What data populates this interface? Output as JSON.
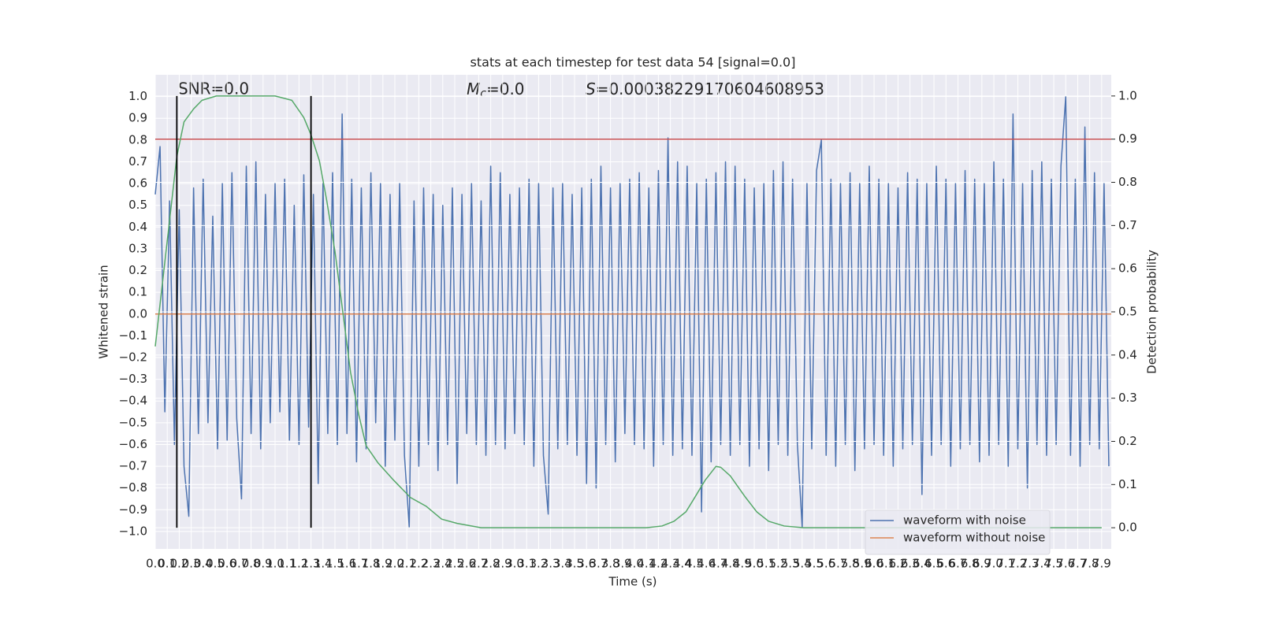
{
  "chart_data": {
    "type": "line",
    "title": "stats at each timestep for test data 54 [signal=0.0]",
    "xlabel": "Time (s)",
    "ylabel": "Whitened strain",
    "y2label": "Detection probability",
    "annotations": [
      {
        "text": "SNR=0.0"
      },
      {
        "symbol": "M",
        "subscript": "c",
        "text": "=0.0"
      },
      {
        "symbol": "S",
        "text": "=0.00038229170604608953"
      }
    ],
    "xlim": [
      0,
      7.98
    ],
    "ylim": [
      -1.08,
      1.1
    ],
    "y2lim": [
      -0.049,
      1.049
    ],
    "grid": true,
    "legend": "lower right",
    "xticks": [
      {
        "value": 0,
        "label": "0.0"
      },
      0.1,
      0.2,
      0.3,
      0.4,
      0.5,
      0.6,
      0.7,
      0.8,
      0.9,
      {
        "value": 1,
        "label": "1.0"
      },
      1.1,
      1.2,
      1.3,
      1.4,
      1.5,
      1.6,
      1.7,
      1.8,
      1.9,
      {
        "value": 2,
        "label": "2.0"
      },
      2.1,
      2.2,
      2.3,
      2.4,
      2.5,
      2.6,
      2.7,
      2.8,
      2.9,
      {
        "value": 3,
        "label": "3.0"
      },
      3.1,
      3.2,
      3.3,
      3.4,
      3.5,
      3.6,
      3.7,
      3.8,
      3.9,
      {
        "value": 4,
        "label": "4.0"
      },
      4.1,
      4.2,
      4.3,
      4.4,
      4.5,
      4.6,
      4.7,
      4.8,
      4.9,
      {
        "value": 5,
        "label": "5.0"
      },
      5.1,
      5.2,
      5.3,
      5.4,
      5.5,
      5.6,
      5.7,
      5.8,
      5.9,
      {
        "value": 6,
        "label": "6.0"
      },
      6.1,
      6.2,
      6.3,
      6.4,
      6.5,
      6.6,
      6.7,
      6.8,
      6.9,
      {
        "value": 7,
        "label": "7.0"
      },
      7.1,
      7.2,
      7.3,
      7.4,
      7.5,
      7.6,
      7.7,
      7.8,
      7.9
    ],
    "yticks": [
      {
        "value": -1,
        "label": "−1.0"
      },
      {
        "value": -0.9,
        "label": "−0.9"
      },
      {
        "value": -0.8,
        "label": "−0.8"
      },
      {
        "value": -0.7,
        "label": "−0.7"
      },
      {
        "value": -0.6,
        "label": "−0.6"
      },
      {
        "value": -0.5,
        "label": "−0.5"
      },
      {
        "value": -0.4,
        "label": "−0.4"
      },
      {
        "value": -0.3,
        "label": "−0.3"
      },
      {
        "value": -0.2,
        "label": "−0.2"
      },
      {
        "value": -0.1,
        "label": "−0.1"
      },
      {
        "value": 0,
        "label": "0.0"
      },
      0.1,
      0.2,
      0.3,
      0.4,
      0.5,
      0.6,
      0.7,
      0.8,
      0.9,
      {
        "value": 1,
        "label": "1.0"
      }
    ],
    "y2ticks": [
      {
        "value": 0,
        "label": "0.0"
      },
      0.1,
      0.2,
      0.3,
      0.4,
      0.5,
      0.6,
      0.7,
      0.8,
      0.9,
      {
        "value": 1,
        "label": "1.0"
      }
    ],
    "series": [
      {
        "name": "waveform with noise",
        "color": "#4c72b0",
        "x": [
          0,
          0.04,
          0.08,
          0.12,
          0.16,
          0.2,
          0.24,
          0.28,
          0.32,
          0.36,
          0.4,
          0.44,
          0.48,
          0.52,
          0.56,
          0.6,
          0.64,
          0.68,
          0.72,
          0.76,
          0.8,
          0.84,
          0.88,
          0.92,
          0.96,
          1,
          1.04,
          1.08,
          1.12,
          1.16,
          1.2,
          1.24,
          1.28,
          1.32,
          1.36,
          1.4,
          1.44,
          1.48,
          1.52,
          1.56,
          1.6,
          1.64,
          1.68,
          1.72,
          1.76,
          1.8,
          1.84,
          1.88,
          1.92,
          1.96,
          2,
          2.04,
          2.08,
          2.12,
          2.16,
          2.2,
          2.24,
          2.28,
          2.32,
          2.36,
          2.4,
          2.44,
          2.48,
          2.52,
          2.56,
          2.6,
          2.64,
          2.68,
          2.72,
          2.76,
          2.8,
          2.84,
          2.88,
          2.92,
          2.96,
          3,
          3.04,
          3.08,
          3.12,
          3.16,
          3.2,
          3.24,
          3.28,
          3.32,
          3.36,
          3.4,
          3.44,
          3.48,
          3.52,
          3.56,
          3.6,
          3.64,
          3.68,
          3.72,
          3.76,
          3.8,
          3.84,
          3.88,
          3.92,
          3.96,
          4,
          4.04,
          4.08,
          4.12,
          4.16,
          4.2,
          4.24,
          4.28,
          4.32,
          4.36,
          4.4,
          4.44,
          4.48,
          4.52,
          4.56,
          4.6,
          4.64,
          4.68,
          4.72,
          4.76,
          4.8,
          4.84,
          4.88,
          4.92,
          4.96,
          5,
          5.04,
          5.08,
          5.12,
          5.16,
          5.2,
          5.24,
          5.28,
          5.32,
          5.36,
          5.4,
          5.44,
          5.48,
          5.52,
          5.56,
          5.6,
          5.64,
          5.68,
          5.72,
          5.76,
          5.8,
          5.84,
          5.88,
          5.92,
          5.96,
          6,
          6.04,
          6.08,
          6.12,
          6.16,
          6.2,
          6.24,
          6.28,
          6.32,
          6.36,
          6.4,
          6.44,
          6.48,
          6.52,
          6.56,
          6.6,
          6.64,
          6.68,
          6.72,
          6.76,
          6.8,
          6.84,
          6.88,
          6.92,
          6.96,
          7,
          7.04,
          7.08,
          7.12,
          7.16,
          7.2,
          7.24,
          7.28,
          7.32,
          7.36,
          7.4,
          7.44,
          7.48,
          7.52,
          7.56,
          7.6,
          7.64,
          7.68,
          7.72,
          7.76,
          7.8,
          7.84,
          7.88,
          7.92,
          7.96
        ],
        "values": [
          0.55,
          0.77,
          -0.45,
          0.52,
          -0.6,
          0.48,
          -0.7,
          -0.93,
          0.58,
          -0.55,
          0.62,
          -0.5,
          0.45,
          -0.62,
          0.6,
          -0.58,
          0.65,
          -0.48,
          -0.85,
          0.68,
          -0.55,
          0.7,
          -0.62,
          0.55,
          -0.5,
          0.6,
          -0.45,
          0.62,
          -0.58,
          0.5,
          -0.6,
          0.64,
          -0.52,
          0.55,
          -0.78,
          0.6,
          -0.55,
          0.65,
          -0.6,
          0.92,
          -0.55,
          0.62,
          -0.68,
          0.58,
          -0.62,
          0.65,
          -0.5,
          0.6,
          -0.7,
          0.55,
          -0.58,
          0.6,
          -0.65,
          -0.98,
          0.52,
          -0.7,
          0.58,
          -0.6,
          0.55,
          -0.72,
          0.5,
          -0.6,
          0.58,
          -0.78,
          0.55,
          -0.55,
          0.6,
          -0.6,
          0.52,
          -0.65,
          0.68,
          -0.6,
          0.65,
          -0.62,
          0.55,
          -0.55,
          0.58,
          -0.6,
          0.62,
          -0.7,
          0.6,
          -0.65,
          -0.92,
          0.58,
          -0.62,
          0.6,
          -0.6,
          0.55,
          -0.65,
          0.58,
          -0.78,
          0.62,
          -0.8,
          0.68,
          -0.6,
          0.58,
          -0.68,
          0.6,
          -0.55,
          0.62,
          -0.6,
          0.65,
          -0.62,
          0.58,
          -0.7,
          0.66,
          -0.6,
          0.81,
          -0.65,
          0.7,
          -0.62,
          0.68,
          -0.65,
          0.6,
          -0.91,
          0.62,
          -0.68,
          0.65,
          -0.6,
          0.7,
          -0.65,
          0.68,
          -0.6,
          0.62,
          -0.7,
          0.58,
          -0.62,
          0.6,
          -0.72,
          0.66,
          -0.6,
          0.7,
          -0.65,
          0.62,
          -0.6,
          -0.98,
          0.6,
          -0.62,
          0.66,
          0.8,
          -0.65,
          0.62,
          -0.7,
          0.6,
          -0.6,
          0.65,
          -0.72,
          0.6,
          -0.62,
          0.68,
          -0.6,
          0.62,
          -0.65,
          0.6,
          -0.7,
          0.58,
          -0.62,
          0.65,
          -0.6,
          0.62,
          -0.83,
          0.6,
          -0.65,
          0.68,
          -0.6,
          0.62,
          -0.7,
          0.6,
          -0.62,
          0.66,
          -0.6,
          0.62,
          -0.68,
          0.6,
          -0.65,
          0.7,
          -0.6,
          0.62,
          -0.7,
          0.92,
          -0.62,
          0.6,
          -0.8,
          0.66,
          -0.6,
          0.7,
          -0.65,
          0.62,
          -0.6,
          0.68,
          1.0,
          -0.65,
          0.62,
          -0.7,
          0.86,
          -0.6,
          0.65,
          -0.62,
          0.6,
          -0.7
        ]
      },
      {
        "name": "waveform without noise",
        "color": "#dd8452",
        "x": [
          0,
          7.98
        ],
        "values": [
          0,
          0
        ]
      },
      {
        "color": "#55a868",
        "axis": "y2",
        "x": [
          0,
          0.18,
          0.24,
          0.32,
          0.39,
          0.51,
          0.7,
          1.0,
          1.14,
          1.24,
          1.3,
          1.37,
          1.43,
          1.5,
          1.57,
          1.63,
          1.7,
          1.76,
          1.86,
          1.99,
          2.13,
          2.26,
          2.39,
          2.52,
          2.72,
          3.3,
          4.1,
          4.23,
          4.33,
          4.43,
          4.49,
          4.59,
          4.68,
          4.72,
          4.8,
          4.92,
          5.02,
          5.12,
          5.25,
          5.41,
          7.9
        ],
        "values": [
          0.42,
          0.86,
          0.94,
          0.97,
          0.99,
          1.0,
          1.0,
          1.0,
          0.99,
          0.95,
          0.91,
          0.85,
          0.76,
          0.64,
          0.49,
          0.36,
          0.26,
          0.19,
          0.15,
          0.11,
          0.07,
          0.05,
          0.02,
          0.01,
          0.0,
          0.0,
          0.0,
          0.004,
          0.015,
          0.037,
          0.064,
          0.11,
          0.142,
          0.14,
          0.12,
          0.073,
          0.037,
          0.015,
          0.004,
          0.0,
          0.0
        ]
      }
    ],
    "threshold": {
      "value": 0.9,
      "axis": "y2",
      "color": "#c44e52"
    },
    "vlines": [
      0.18,
      1.3
    ],
    "vline_y2span": [
      0,
      1
    ],
    "vline_color": "#000000"
  }
}
